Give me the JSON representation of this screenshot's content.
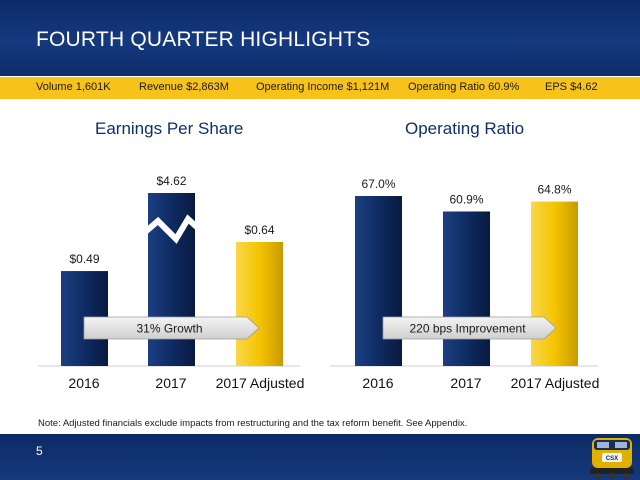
{
  "slide": {
    "title": "FOURTH QUARTER HIGHLIGHTS",
    "page_number": "5",
    "note": "Note:  Adjusted financials exclude impacts from restructuring and the tax reform benefit. See Appendix."
  },
  "kpis": [
    "Volume 1,601K",
    "Revenue $2,863M",
    "Operating Income $1,121M",
    "Operating Ratio 60.9%",
    "EPS $4.62"
  ],
  "colors": {
    "navy": "#0f2b63",
    "gold": "#f5c400",
    "header_blue": "#0c2a66",
    "title_blue": "#0f2e6e"
  },
  "chart_data": [
    {
      "type": "bar",
      "title": "Earnings Per Share",
      "categories": [
        "2016",
        "2017",
        "2017 Adjusted"
      ],
      "values": [
        0.49,
        4.62,
        0.64
      ],
      "data_labels": [
        "$0.49",
        "$4.62",
        "$0.64"
      ],
      "bar_colors": [
        "navy",
        "navy",
        "gold"
      ],
      "axis_break_on": "2017",
      "annotation": "31% Growth"
    },
    {
      "type": "bar",
      "title": "Operating Ratio",
      "categories": [
        "2016",
        "2017",
        "2017 Adjusted"
      ],
      "values": [
        67.0,
        60.9,
        64.8
      ],
      "data_labels": [
        "67.0%",
        "60.9%",
        "64.8%"
      ],
      "bar_colors": [
        "navy",
        "navy",
        "gold"
      ],
      "annotation": "220 bps Improvement"
    }
  ]
}
